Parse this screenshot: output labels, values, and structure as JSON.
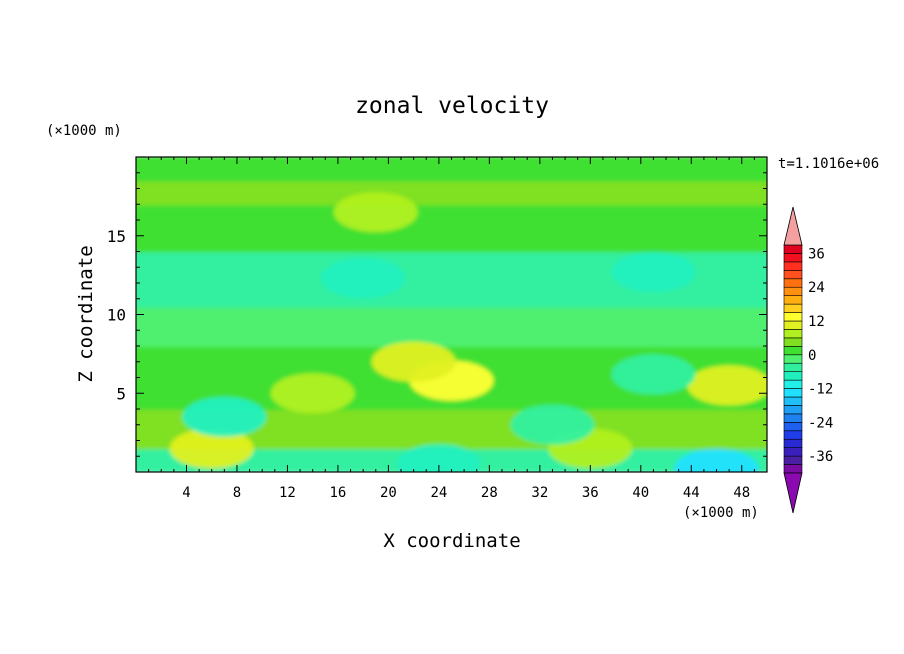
{
  "chart_data": {
    "type": "heatmap",
    "title": "zonal velocity",
    "xlabel": "X coordinate",
    "ylabel": "Z coordinate",
    "x_unit": "(×1000 m)",
    "y_unit": "(×1000 m)",
    "time_label": "t=1.1016e+06",
    "xlim": [
      0,
      50
    ],
    "ylim": [
      0,
      20
    ],
    "x_ticks": [
      4,
      8,
      12,
      16,
      20,
      24,
      28,
      32,
      36,
      40,
      44,
      48
    ],
    "y_ticks": [
      5,
      10,
      15
    ],
    "colorbar": {
      "levels": [
        -42,
        -39,
        -36,
        -33,
        -30,
        -27,
        -24,
        -21,
        -18,
        -15,
        -12,
        -9,
        -6,
        -3,
        0,
        3,
        6,
        9,
        12,
        15,
        18,
        21,
        24,
        27,
        30,
        33,
        36,
        39,
        42
      ],
      "labels": [
        36,
        24,
        12,
        0,
        -12,
        -24,
        -36
      ],
      "colors": [
        "#7a0ba3",
        "#4a1fa3",
        "#3a1fbd",
        "#2a2ad5",
        "#1f3de8",
        "#1f5ff0",
        "#1f80f0",
        "#1fa0f5",
        "#1fc0f8",
        "#20e0ff",
        "#20f0e8",
        "#20f0c0",
        "#30f0a0",
        "#50f070",
        "#40e030",
        "#80e020",
        "#b0f020",
        "#e0f020",
        "#ffff30",
        "#ffd020",
        "#ffb010",
        "#ff9010",
        "#ff7010",
        "#ff5020",
        "#ff3020",
        "#f01020",
        "#e00020",
        "#f4a0a0"
      ],
      "extend": "both",
      "arrow_top_color": "#f4a0a0",
      "arrow_bottom_color": "#8a0ab0"
    },
    "field_bands": [
      {
        "z_range": [
          0,
          1.5
        ],
        "value": -6
      },
      {
        "z_range": [
          1.5,
          4
        ],
        "value": 3
      },
      {
        "z_range": [
          4,
          8
        ],
        "value": 0
      },
      {
        "z_range": [
          8,
          10.5
        ],
        "value": -3
      },
      {
        "z_range": [
          10.5,
          14
        ],
        "value": -6
      },
      {
        "z_range": [
          14,
          17
        ],
        "value": 0
      },
      {
        "z_range": [
          17,
          18.5
        ],
        "value": 3
      },
      {
        "z_range": [
          18.5,
          20
        ],
        "value": 0
      }
    ],
    "features": [
      {
        "x": 25,
        "z": 5.8,
        "value": 12
      },
      {
        "x": 22,
        "z": 7,
        "value": 9
      },
      {
        "x": 47,
        "z": 5.5,
        "value": 9
      },
      {
        "x": 6,
        "z": 1.5,
        "value": 9
      },
      {
        "x": 36,
        "z": 1.5,
        "value": 6
      },
      {
        "x": 14,
        "z": 5,
        "value": 6
      },
      {
        "x": 7,
        "z": 3.5,
        "value": -9
      },
      {
        "x": 24,
        "z": 0.5,
        "value": -9
      },
      {
        "x": 33,
        "z": 3,
        "value": -6
      },
      {
        "x": 18,
        "z": 12.3,
        "value": -9
      },
      {
        "x": 41,
        "z": 12.7,
        "value": -9
      },
      {
        "x": 46,
        "z": 0.2,
        "value": -15
      },
      {
        "x": 19,
        "z": 16.5,
        "value": 6
      },
      {
        "x": 41,
        "z": 6.2,
        "value": -6
      }
    ]
  }
}
